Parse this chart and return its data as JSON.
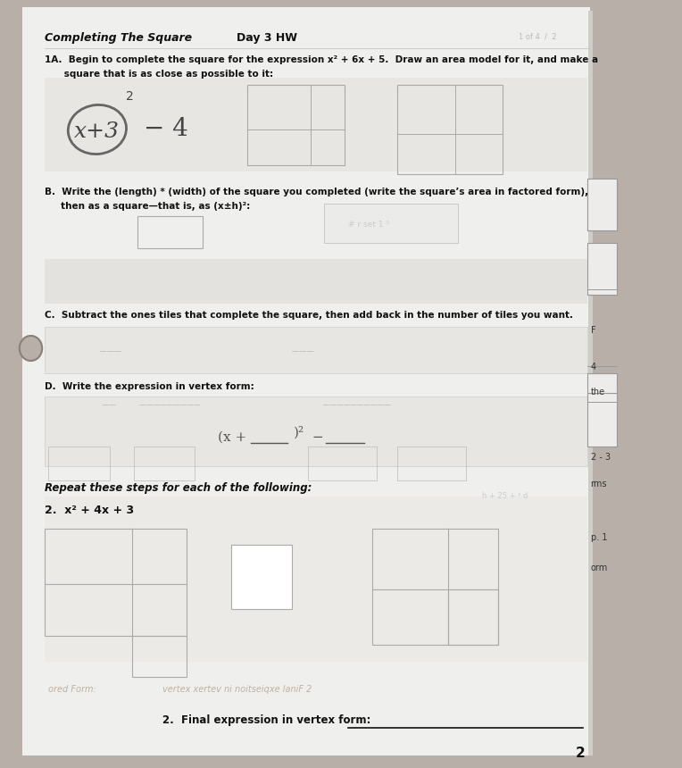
{
  "title_left": "Completing The Square",
  "title_center": "Day 3 HW",
  "bg_color": "#b8b0a8",
  "paper_color": "#efefed",
  "handwriting_color": "#555555",
  "text_color": "#111111",
  "light_gray": "#cccccc",
  "medium_gray": "#aaaaaa",
  "section_1A_line1": "1A.  Begin to complete the square for the expression x² + 6x + 5.  Draw an area model for it, and make a",
  "section_1A_line2": "      square that is as close as possible to it:",
  "section_B_line1": "B.  Write the (length) * (width) of the square you completed (write the square’s area in factored form),",
  "section_B_line2": "     then as a square—that is, as (x±h)²:",
  "section_C": "C.  Subtract the ones tiles that complete the square, then add back in the number of tiles you want.",
  "section_D": "D.  Write the expression in vertex form:",
  "repeat_header": "Repeat these steps for each of the following:",
  "problem2": "2.  x² + 4x + 3",
  "final_expr_label": "2.  Final expression in vertex form:",
  "side_labels": [
    [
      "orm",
      0.74
    ],
    [
      "p. 1",
      0.7
    ],
    [
      "rms",
      0.63
    ],
    [
      "2 - 3",
      0.595
    ],
    [
      "the",
      0.51
    ],
    [
      "4",
      0.478
    ],
    [
      "F",
      0.43
    ]
  ],
  "page_number": "2",
  "faint_label_left": "ored Form:",
  "faint_mid_text": "vertex xertev ni noitseiqxe laniF 2"
}
